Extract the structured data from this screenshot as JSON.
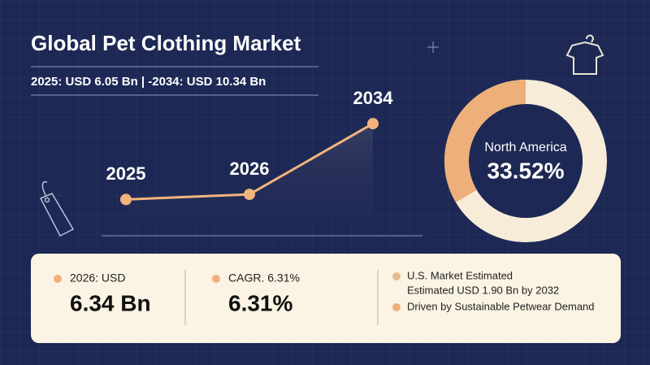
{
  "header": {
    "title": "Global Pet Clothing Market",
    "subtitle": "2025: USD 6.05 Bn | -2034: USD 10.34 Bn"
  },
  "chart_data": [
    {
      "type": "line",
      "categories": [
        "2025",
        "2026",
        "2034"
      ],
      "values": [
        6.05,
        6.34,
        10.34
      ],
      "color": "#f2b47c",
      "ylim": [
        4,
        12
      ]
    },
    {
      "type": "pie",
      "categories": [
        "North America"
      ],
      "values": [
        33.52
      ],
      "value_labels": [
        "33.52%"
      ],
      "color": "#eeb07a"
    }
  ],
  "stats": [
    {
      "label": "2026: USD",
      "value": "6.34 Bn"
    },
    {
      "label": "CAGR. 6.31%",
      "value": "6.31%"
    },
    {
      "lines": [
        "U.S. Market Estimated",
        "Estimated USD 1.90 Bn by 2032",
        "Driven by Sustainable Petwear Demand"
      ]
    }
  ]
}
